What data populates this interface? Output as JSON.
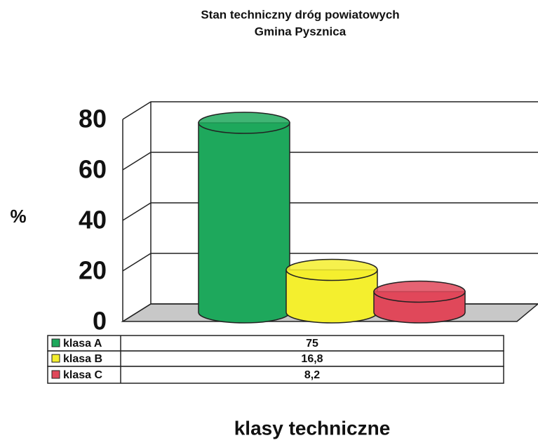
{
  "chart_data": {
    "type": "bar3d",
    "title": "Stan techniczny dróg powiatowych",
    "subtitle": "Gmina Pysznica",
    "y_label": "%",
    "x_label": "klasy techniczne",
    "categories": [
      null
    ],
    "series": [
      {
        "name": "klasa A",
        "color": "#1ea85c",
        "values": [
          75
        ]
      },
      {
        "name": "klasa B",
        "color": "#f4ef2e",
        "values": [
          16.8
        ],
        "value_labels": [
          "16,8"
        ]
      },
      {
        "name": "klasa C",
        "color": "#e0485a",
        "values": [
          8.2
        ],
        "value_labels": [
          "8,2"
        ]
      }
    ],
    "ylim": [
      0,
      80
    ],
    "yticks": [
      0,
      20,
      40,
      60,
      80
    ],
    "grid": true
  }
}
